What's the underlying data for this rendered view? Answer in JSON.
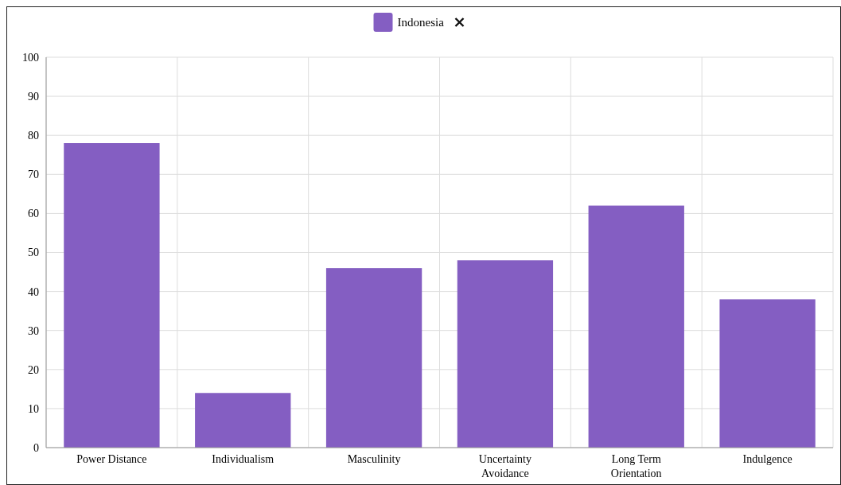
{
  "chart_data": {
    "type": "bar",
    "categories": [
      "Power Distance",
      "Individualism",
      "Masculinity",
      "Uncertainty Avoidance",
      "Long Term Orientation",
      "Indulgence"
    ],
    "series": [
      {
        "name": "Indonesia",
        "color": "#845ec2",
        "values": [
          78,
          14,
          46,
          48,
          62,
          38
        ]
      }
    ],
    "ylim": [
      0,
      100
    ],
    "yticks": [
      0,
      10,
      20,
      30,
      40,
      50,
      60,
      70,
      80,
      90,
      100
    ],
    "grid": true,
    "legend": "top"
  }
}
